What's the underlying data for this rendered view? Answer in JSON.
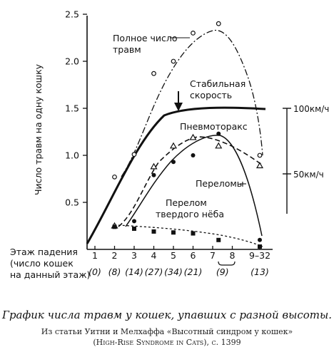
{
  "chart_data": {
    "type": "line",
    "ylabel": "Число травм на одну кошку",
    "ylim": [
      0,
      2.5
    ],
    "yticks": [
      "0.5",
      "1.0",
      "1.5",
      "2.0",
      "2.5"
    ],
    "xlabel": "Этаж падения",
    "xlabel2": "(число кошек",
    "xlabel3": "на данный этаж)",
    "categories": [
      "1",
      "2",
      "3",
      "4",
      "5",
      "6",
      "7",
      "8",
      "9–32"
    ],
    "counts": [
      "(0)",
      "(8)",
      "(14)",
      "(27)",
      "(34)",
      "(21)",
      "(9)",
      "(13)"
    ],
    "series": [
      {
        "name": "Полное число травм",
        "marker": "circle-open",
        "points": [
          [
            2,
            0.77
          ],
          [
            3,
            1.01
          ],
          [
            4,
            1.87
          ],
          [
            5,
            2.0
          ],
          [
            6,
            2.3
          ],
          [
            7.3,
            2.4
          ],
          [
            9.4,
            1.0
          ]
        ]
      },
      {
        "name": "Пневмоторакс",
        "marker": "triangle-open",
        "points": [
          [
            2,
            0.25
          ],
          [
            4,
            0.88
          ],
          [
            5,
            1.1
          ],
          [
            6,
            1.19
          ],
          [
            7.3,
            1.1
          ],
          [
            9.4,
            0.89
          ]
        ]
      },
      {
        "name": "Переломы",
        "marker": "circle-filled",
        "points": [
          [
            3,
            0.3
          ],
          [
            4,
            0.79
          ],
          [
            5,
            0.93
          ],
          [
            6,
            1.0
          ],
          [
            7.3,
            1.23
          ],
          [
            9.4,
            0.1
          ]
        ]
      },
      {
        "name": "Перелом твердого нёба",
        "marker": "square-filled",
        "points": [
          [
            2,
            0.24
          ],
          [
            3,
            0.22
          ],
          [
            4,
            0.19
          ],
          [
            5,
            0.18
          ],
          [
            6,
            0.17
          ],
          [
            7.3,
            0.1
          ],
          [
            9.4,
            0.03
          ]
        ]
      }
    ],
    "annotations": {
      "total": [
        "Полное число",
        "травм"
      ],
      "stable": [
        "Стабильная",
        "скорость"
      ],
      "pneumo": "Пневмоторакс",
      "fractures": "Переломы",
      "palate": [
        "Перелом",
        "твердого нёба"
      ],
      "speed_high": "100км/ч",
      "speed_low": "50км/ч"
    }
  },
  "caption": "График числа травм у кошек, упавших с разной высоты.",
  "source_line1": "Из статьи Уитни и Мелхаффа «Высотный синдром у кошек»",
  "source_line2": "(High-Rise Syndrome in Cats), с. 1399"
}
